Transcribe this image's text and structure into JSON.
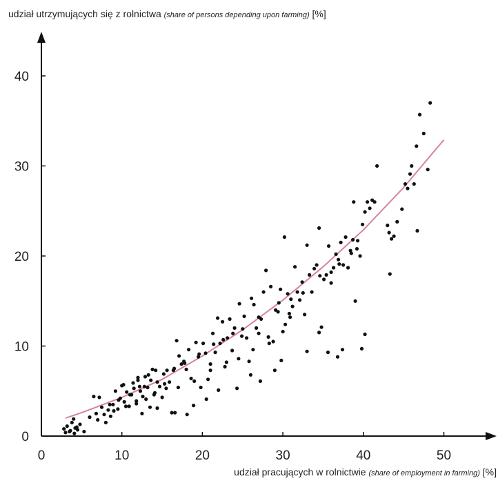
{
  "chart_data": {
    "type": "scatter",
    "ylabel": {
      "main": "udział utrzymujących się z rolnictwa",
      "translation": "(share of persons depending upon farming)",
      "unit": "[%]"
    },
    "xlabel": {
      "main": "udział pracujących w rolnictwie",
      "translation": "(share of employment in farming)",
      "unit": "[%]"
    },
    "xlim": [
      0,
      55
    ],
    "ylim": [
      0,
      46
    ],
    "x_ticks": [
      0,
      10,
      20,
      30,
      40,
      50
    ],
    "y_ticks": [
      0,
      10,
      20,
      30,
      40
    ],
    "grid": false,
    "colors": {
      "points": "#111111",
      "trend": "#d6849c",
      "axis": "#111111"
    },
    "trend_line": {
      "type": "quadratic",
      "x": [
        3,
        5,
        10,
        15,
        20,
        25,
        30,
        35,
        40,
        45,
        50
      ],
      "y": [
        2.0,
        2.6,
        4.3,
        6.3,
        8.9,
        11.8,
        15.1,
        18.8,
        22.9,
        27.6,
        32.9
      ]
    },
    "series": [
      {
        "x": [
          2.8,
          3.2,
          3.5,
          3.8,
          4.0,
          4.2,
          4.5,
          4.8,
          3.0,
          3.6,
          4.1,
          4.4,
          5.3,
          6.0,
          6.5,
          6.8,
          7.0,
          7.2,
          7.5,
          7.8,
          8.0,
          8.3,
          8.6,
          8.9,
          9.2,
          9.5,
          9.8,
          10.0,
          10.3,
          10.6,
          10.9,
          11.2,
          11.5,
          11.8,
          12.0,
          12.3,
          12.6,
          12.9,
          13.2,
          13.5,
          13.8,
          14.1,
          14.4,
          14.7,
          15.0,
          15.3,
          15.6,
          15.9,
          16.2,
          16.5,
          16.8,
          17.1,
          17.4,
          17.7,
          18.0,
          18.3,
          18.6,
          18.9,
          19.2,
          19.5,
          19.8,
          20.1,
          20.4,
          20.7,
          21.0,
          21.3,
          21.6,
          21.9,
          22.2,
          22.5,
          22.8,
          23.1,
          23.4,
          23.7,
          24.0,
          24.3,
          24.6,
          24.9,
          25.2,
          25.5,
          25.8,
          26.1,
          26.4,
          26.7,
          27.0,
          27.3,
          27.6,
          27.9,
          28.2,
          28.5,
          28.8,
          29.1,
          29.4,
          29.7,
          30.0,
          30.3,
          30.6,
          30.9,
          31.2,
          31.5,
          31.8,
          32.1,
          32.4,
          32.7,
          33.0,
          33.3,
          33.6,
          33.9,
          34.2,
          34.5,
          34.8,
          35.1,
          35.4,
          35.7,
          36.0,
          36.3,
          36.6,
          36.9,
          37.2,
          37.5,
          37.8,
          38.1,
          38.4,
          38.7,
          39.0,
          39.3,
          39.6,
          39.9,
          40.2,
          40.5,
          40.8,
          41.1,
          41.4,
          41.7,
          43.0,
          43.2,
          43.5,
          43.8,
          44.2,
          44.8,
          45.2,
          45.5,
          45.8,
          46.0,
          46.3,
          46.6,
          47.0,
          47.5,
          48.0,
          48.3,
          30.2,
          33.0,
          34.5,
          34.6,
          38.8,
          43.3,
          35.6,
          36.8,
          37.4,
          39.8,
          40.2,
          46.7,
          18.1,
          16.6,
          12.5,
          14.4,
          20.5,
          22.0,
          26.0,
          27.2,
          29.0,
          29.8,
          9.0,
          10.5,
          11.8,
          13.0,
          14.0,
          15.5,
          17.0,
          19.0,
          21.0,
          23.0,
          24.5,
          26.3,
          28.3,
          30.8,
          8.5,
          9.6,
          11.0,
          12.2,
          13.6,
          15.2,
          16.4,
          17.8,
          19.6,
          21.4,
          22.6,
          23.8,
          25.0,
          27.0,
          29.5,
          31.0,
          32.5,
          36.0,
          37.0,
          38.5,
          39.2,
          12.8,
          12.0,
          13.3,
          14.2,
          11.4,
          10.2
        ],
        "y": [
          0.8,
          1.1,
          0.5,
          1.5,
          1.9,
          0.9,
          0.7,
          1.3,
          0.4,
          0.6,
          0.3,
          1.0,
          0.5,
          2.1,
          4.4,
          2.5,
          1.8,
          4.3,
          3.2,
          2.4,
          1.5,
          2.9,
          2.2,
          3.5,
          5.0,
          3.0,
          4.2,
          5.6,
          3.8,
          4.9,
          3.3,
          4.6,
          5.3,
          3.9,
          6.2,
          5.0,
          4.4,
          6.6,
          5.4,
          3.2,
          7.4,
          4.8,
          6.0,
          5.5,
          4.3,
          5.8,
          7.3,
          6.0,
          2.6,
          7.5,
          10.6,
          8.9,
          8.0,
          8.3,
          7.4,
          9.6,
          6.4,
          3.4,
          10.4,
          8.8,
          5.4,
          10.3,
          9.2,
          6.3,
          8.0,
          11.4,
          9.3,
          13.1,
          10.3,
          12.7,
          7.7,
          10.9,
          13.0,
          9.5,
          12.0,
          5.3,
          14.7,
          11.1,
          13.3,
          10.9,
          8.3,
          15.3,
          14.6,
          12.0,
          11.4,
          13.0,
          16.0,
          18.4,
          11.0,
          16.6,
          10.5,
          14.0,
          13.8,
          16.3,
          11.6,
          12.4,
          15.8,
          13.2,
          14.4,
          18.8,
          16.0,
          15.1,
          17.1,
          13.5,
          9.4,
          17.9,
          16.0,
          18.6,
          19.0,
          11.5,
          12.1,
          17.4,
          17.9,
          21.1,
          17.0,
          18.7,
          20.2,
          19.6,
          21.5,
          19.0,
          22.1,
          18.7,
          20.6,
          21.8,
          15.0,
          21.7,
          20.0,
          23.5,
          24.9,
          26.0,
          25.3,
          26.2,
          26.0,
          30.0,
          23.4,
          22.6,
          21.9,
          22.2,
          23.8,
          25.2,
          28.0,
          27.5,
          29.1,
          30.0,
          28.0,
          32.2,
          35.7,
          33.6,
          29.6,
          37.0,
          22.1,
          21.2,
          23.1,
          17.8,
          26.0,
          18.0,
          9.3,
          8.8,
          9.6,
          9.7,
          11.3,
          22.8,
          2.4,
          2.6,
          2.5,
          3.1,
          4.1,
          5.1,
          6.8,
          6.1,
          7.3,
          8.4,
          2.8,
          3.3,
          3.6,
          4.1,
          4.6,
          5.3,
          5.4,
          6.1,
          7.3,
          8.2,
          8.6,
          9.6,
          10.3,
          13.6,
          3.5,
          4.0,
          4.6,
          5.5,
          6.2,
          6.9,
          7.3,
          8.1,
          9.1,
          10.2,
          10.7,
          11.4,
          11.9,
          13.2,
          14.8,
          15.2,
          15.9,
          18.2,
          19.1,
          20.3,
          20.8,
          5.5,
          6.5,
          6.8,
          7.3,
          5.9,
          5.7
        ]
      }
    ]
  }
}
